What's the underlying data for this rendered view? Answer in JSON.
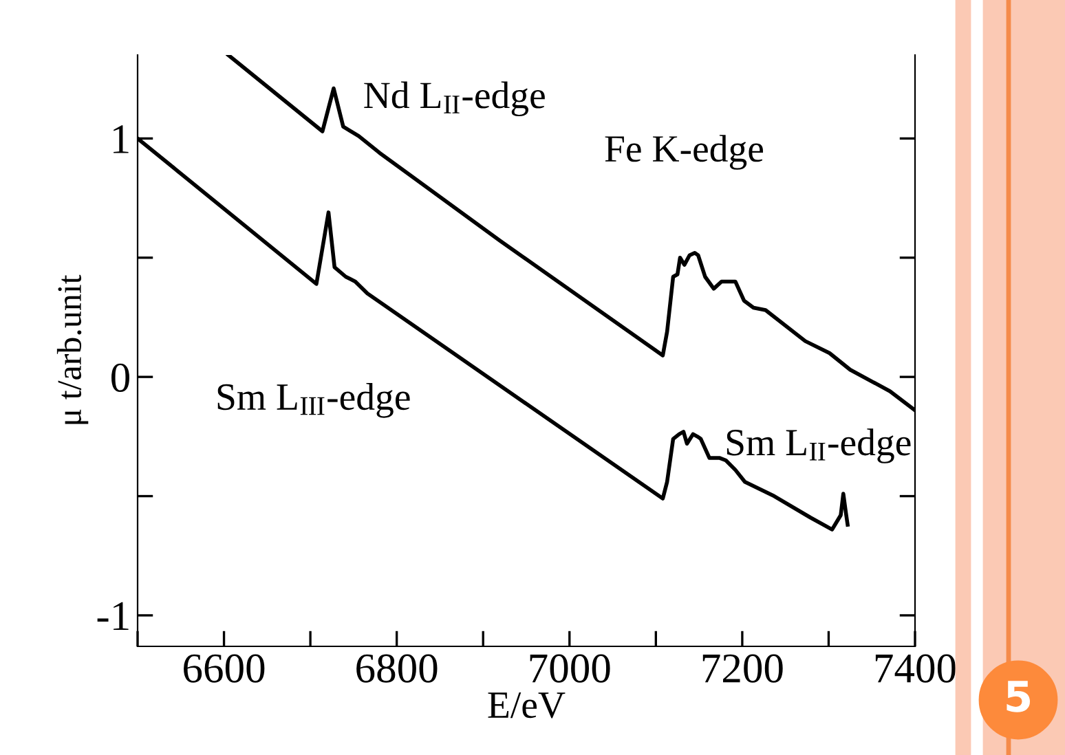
{
  "chart_data": {
    "type": "line",
    "xlabel": "E/eV",
    "ylabel": "μ t/arb.unit",
    "xlim": [
      6500,
      7400
    ],
    "ylim": [
      -1.13,
      1.35
    ],
    "xticks": [
      {
        "value": 6500,
        "label": null
      },
      6600,
      {
        "value": 6700,
        "label": null
      },
      6800,
      {
        "value": 6900,
        "label": null
      },
      7000,
      {
        "value": 7100,
        "label": null
      },
      7200,
      {
        "value": 7300,
        "label": null
      },
      7400
    ],
    "yticks": [
      -1,
      {
        "value": -0.5,
        "label": null
      },
      0,
      {
        "value": 0.5,
        "label": null
      },
      1
    ],
    "grid": false,
    "legend": false,
    "marker": "none",
    "line_style": "solid",
    "series": [
      {
        "color": "#000000",
        "x": [
          6605,
          6714,
          6727,
          6738,
          6756,
          6780,
          6920,
          7108,
          7113,
          7120,
          7125,
          7128,
          7133,
          7139,
          7145,
          7149,
          7157,
          7167,
          7176,
          7183,
          7192,
          7202,
          7213,
          7227,
          7273,
          7301,
          7325,
          7371,
          7400
        ],
        "values": [
          1.35,
          1.03,
          1.21,
          1.05,
          1.01,
          0.94,
          0.57,
          0.09,
          0.19,
          0.42,
          0.43,
          0.5,
          0.47,
          0.51,
          0.52,
          0.51,
          0.42,
          0.37,
          0.4,
          0.4,
          0.4,
          0.32,
          0.29,
          0.28,
          0.15,
          0.1,
          0.03,
          -0.06,
          -0.14
        ]
      },
      {
        "color": "#000000",
        "x": [
          6500,
          6707,
          6721,
          6728,
          6741,
          6752,
          6766,
          7108,
          7113,
          7120,
          7127,
          7132,
          7136,
          7143,
          7148,
          7152,
          7162,
          7174,
          7181,
          7192,
          7203,
          7237,
          7279,
          7304,
          7314,
          7317,
          7320,
          7322
        ],
        "values": [
          1.0,
          0.39,
          0.69,
          0.46,
          0.42,
          0.4,
          0.35,
          -0.51,
          -0.44,
          -0.26,
          -0.24,
          -0.23,
          -0.28,
          -0.24,
          -0.25,
          -0.26,
          -0.34,
          -0.34,
          -0.35,
          -0.39,
          -0.44,
          -0.5,
          -0.59,
          -0.64,
          -0.58,
          -0.49,
          -0.57,
          -0.62
        ]
      }
    ],
    "annotations": [
      "Nd L$_{II}$-edge",
      "Fe K-edge",
      "Sm L$_{III}$-edge",
      "Sm L$_{II}$-edge",
      "5"
    ]
  }
}
